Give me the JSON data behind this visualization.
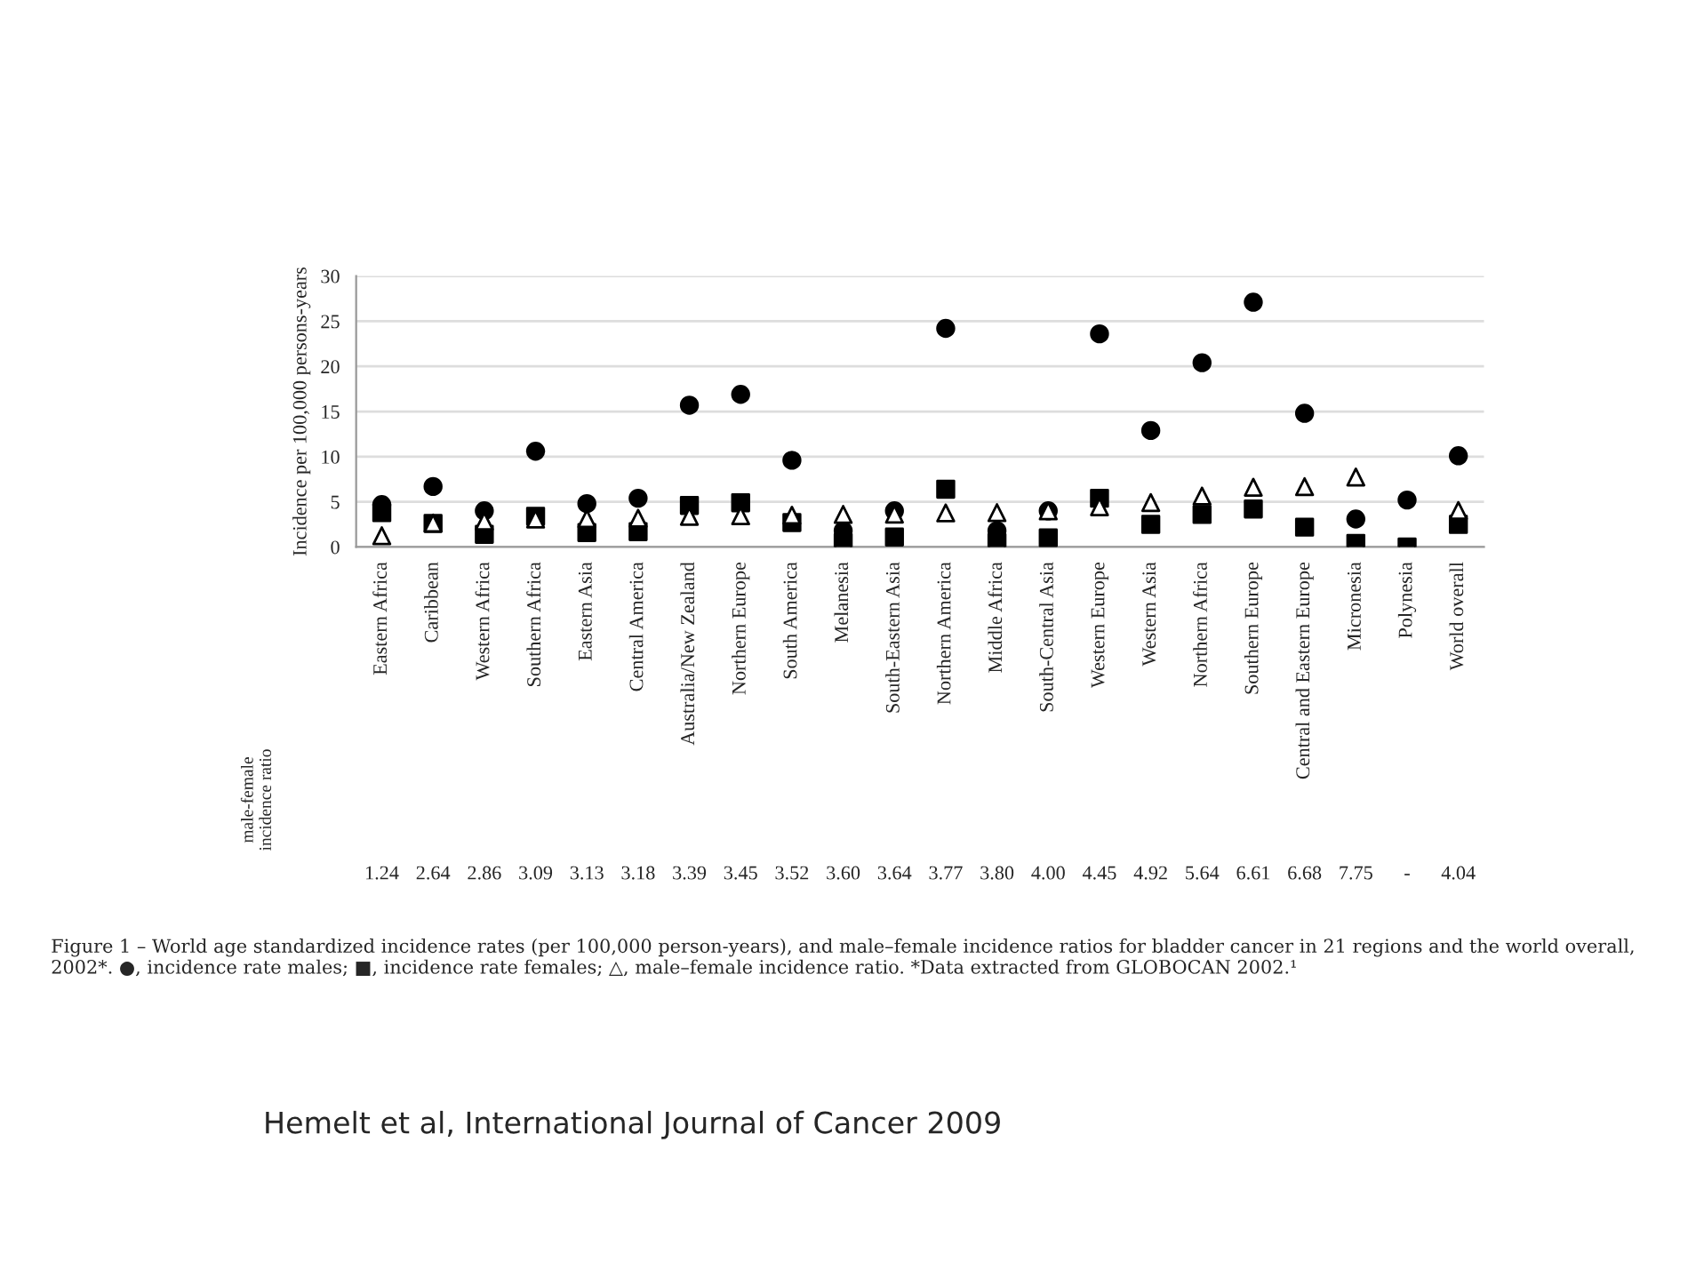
{
  "chart_data": {
    "type": "scatter",
    "ylabel": "Incidence per 100,000 persons-years",
    "categories": [
      "Eastern Africa",
      "Caribbean",
      "Western Africa",
      "Southern Africa",
      "Eastern Asia",
      "Central America",
      "Australia/New Zealand",
      "Northern Europe",
      "South America",
      "Melanesia",
      "South-Eastern Asia",
      "Northern America",
      "Middle Africa",
      "South-Central Asia",
      "Western Europe",
      "Western Asia",
      "Northern Africa",
      "Southern Europe",
      "Central and Eastern Europe",
      "Micronesia",
      "Polynesia",
      "World overall"
    ],
    "series": [
      {
        "color": "#000000",
        "marker": "circle",
        "values": [
          4.7,
          6.7,
          4.0,
          10.6,
          4.8,
          5.4,
          15.7,
          16.9,
          9.6,
          1.8,
          4.0,
          24.2,
          1.8,
          4.0,
          23.6,
          12.9,
          20.4,
          27.1,
          14.8,
          3.1,
          5.2,
          10.1
        ]
      },
      {
        "color": "#000000",
        "marker": "square",
        "values": [
          3.8,
          2.6,
          1.4,
          3.4,
          1.6,
          1.7,
          4.6,
          4.9,
          2.7,
          0.5,
          1.1,
          6.4,
          0.5,
          1.0,
          5.4,
          2.5,
          3.6,
          4.2,
          2.2,
          0.4,
          0.0,
          2.5
        ]
      },
      {
        "color": "#000000",
        "marker": "triangle",
        "values": [
          1.24,
          2.64,
          2.86,
          3.09,
          3.13,
          3.18,
          3.39,
          3.45,
          3.52,
          3.6,
          3.64,
          3.77,
          3.8,
          4.0,
          4.45,
          4.92,
          5.64,
          6.61,
          6.68,
          7.75,
          null,
          4.04
        ],
        "value_labels": [
          "1.24",
          "2.64",
          "2.86",
          "3.09",
          "3.13",
          "3.18",
          "3.39",
          "3.45",
          "3.52",
          "3.60",
          "3.64",
          "3.77",
          "3.80",
          "4.00",
          "4.45",
          "4.92",
          "5.64",
          "6.61",
          "6.68",
          "7.75",
          "-",
          "4.04"
        ]
      }
    ],
    "ylim": [
      0,
      30
    ],
    "yticks": [
      0,
      5,
      10,
      15,
      20,
      25,
      30
    ],
    "grid": "y",
    "annotations": [
      "male-female incidence ratio",
      "Figure 1 – World age standardized incidence rates (per 100,000 person-years), and male–female incidence ratios for bladder cancer in 21 regions and the world overall, 2002*. ●, incidence rate males; ■, incidence rate females; △, male–female incidence ratio. *Data extracted from GLOBOCAN 2002.¹",
      "Hemelt et al, International Journal of Cancer 2009"
    ]
  }
}
